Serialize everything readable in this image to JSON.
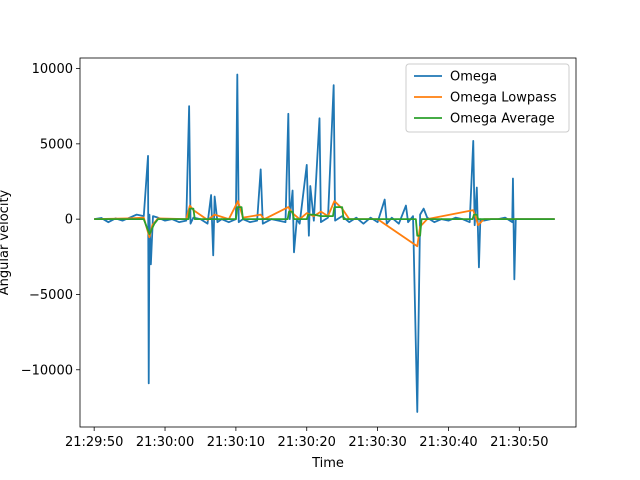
{
  "chart_data": {
    "type": "line",
    "xlabel": "Time",
    "ylabel": "Angular velocity",
    "x_tick_labels": [
      "21:29:50",
      "21:30:00",
      "21:30:10",
      "21:30:20",
      "21:30:30",
      "21:30:40",
      "21:30:50"
    ],
    "x_range": [
      "21:29:48",
      "21:30:58"
    ],
    "y_ticks": [
      -10000,
      -5000,
      0,
      5000,
      10000
    ],
    "y_tick_labels": [
      "−10000",
      "−5000",
      "0",
      "5000",
      "10000"
    ],
    "ylim": [
      -13800,
      10700
    ],
    "legend_position": "top-right",
    "grid": false,
    "series": [
      {
        "name": "Omega",
        "color": "#1f77b4",
        "points": [
          [
            "21:29:50",
            0
          ],
          [
            "21:29:51",
            80
          ],
          [
            "21:29:52",
            -200
          ],
          [
            "21:29:53",
            50
          ],
          [
            "21:29:54",
            -100
          ],
          [
            "21:29:55",
            100
          ],
          [
            "21:29:56",
            300
          ],
          [
            "21:29:57",
            200
          ],
          [
            "21:29:57.6",
            4200
          ],
          [
            "21:29:57.7",
            -10900
          ],
          [
            "21:29:57.8",
            300
          ],
          [
            "21:29:58",
            -3000
          ],
          [
            "21:29:58.3",
            200
          ],
          [
            "21:29:59",
            100
          ],
          [
            "21:30:00",
            -100
          ],
          [
            "21:30:01",
            0
          ],
          [
            "21:30:02",
            -200
          ],
          [
            "21:30:03",
            -100
          ],
          [
            "21:30:03.4",
            7500
          ],
          [
            "21:30:03.6",
            -300
          ],
          [
            "21:30:04",
            100
          ],
          [
            "21:30:05",
            0
          ],
          [
            "21:30:06",
            -300
          ],
          [
            "21:30:06.5",
            1600
          ],
          [
            "21:30:06.8",
            -2400
          ],
          [
            "21:30:07",
            1500
          ],
          [
            "21:30:07.4",
            -200
          ],
          [
            "21:30:08",
            0
          ],
          [
            "21:30:09",
            -200
          ],
          [
            "21:30:10",
            0
          ],
          [
            "21:30:10.2",
            9600
          ],
          [
            "21:30:10.4",
            -200
          ],
          [
            "21:30:11",
            0
          ],
          [
            "21:30:12",
            -200
          ],
          [
            "21:30:13",
            -100
          ],
          [
            "21:30:13.5",
            3300
          ],
          [
            "21:30:13.8",
            -300
          ],
          [
            "21:30:15",
            0
          ],
          [
            "21:30:16",
            -100
          ],
          [
            "21:30:17",
            -200
          ],
          [
            "21:30:17.4",
            7000
          ],
          [
            "21:30:17.6",
            0
          ],
          [
            "21:30:18",
            1900
          ],
          [
            "21:30:18.2",
            -2200
          ],
          [
            "21:30:18.6",
            0
          ],
          [
            "21:30:19",
            -300
          ],
          [
            "21:30:20",
            3600
          ],
          [
            "21:30:20.3",
            -1100
          ],
          [
            "21:30:20.5",
            2200
          ],
          [
            "21:30:21",
            -100
          ],
          [
            "21:30:21.8",
            6700
          ],
          [
            "21:30:22",
            -200
          ],
          [
            "21:30:23",
            100
          ],
          [
            "21:30:23.8",
            8900
          ],
          [
            "21:30:24",
            -100
          ],
          [
            "21:30:25",
            200
          ],
          [
            "21:30:26",
            -200
          ],
          [
            "21:30:27",
            100
          ],
          [
            "21:30:28",
            -300
          ],
          [
            "21:30:29",
            100
          ],
          [
            "21:30:30",
            -200
          ],
          [
            "21:30:31",
            1300
          ],
          [
            "21:30:31.3",
            -300
          ],
          [
            "21:30:32",
            100
          ],
          [
            "21:30:33",
            -300
          ],
          [
            "21:30:34",
            900
          ],
          [
            "21:30:34.3",
            -200
          ],
          [
            "21:30:35",
            200
          ],
          [
            "21:30:35.6",
            -12800
          ],
          [
            "21:30:36",
            300
          ],
          [
            "21:30:36.5",
            700
          ],
          [
            "21:30:37",
            100
          ],
          [
            "21:30:38",
            -200
          ],
          [
            "21:30:39",
            0
          ],
          [
            "21:30:40",
            -100
          ],
          [
            "21:30:41",
            100
          ],
          [
            "21:30:42",
            0
          ],
          [
            "21:30:43",
            -200
          ],
          [
            "21:30:43.5",
            5200
          ],
          [
            "21:30:43.7",
            -400
          ],
          [
            "21:30:44",
            2100
          ],
          [
            "21:30:44.3",
            -3200
          ],
          [
            "21:30:44.5",
            0
          ],
          [
            "21:30:45",
            -100
          ],
          [
            "21:30:46",
            0
          ],
          [
            "21:30:47",
            0
          ],
          [
            "21:30:48",
            100
          ],
          [
            "21:30:49",
            -200
          ],
          [
            "21:30:49.1",
            2700
          ],
          [
            "21:30:49.3",
            -4000
          ],
          [
            "21:30:49.5",
            0
          ],
          [
            "21:30:51",
            0
          ],
          [
            "21:30:53",
            0
          ],
          [
            "21:30:55",
            0
          ]
        ]
      },
      {
        "name": "Omega Lowpass",
        "color": "#ff7f0e",
        "points": [
          [
            "21:29:50",
            0
          ],
          [
            "21:29:55",
            50
          ],
          [
            "21:29:57",
            100
          ],
          [
            "21:29:57.8",
            -1200
          ],
          [
            "21:29:58.2",
            -400
          ],
          [
            "21:29:59",
            50
          ],
          [
            "21:30:03",
            0
          ],
          [
            "21:30:03.5",
            900
          ],
          [
            "21:30:04",
            600
          ],
          [
            "21:30:06",
            -50
          ],
          [
            "21:30:07",
            300
          ],
          [
            "21:30:09",
            0
          ],
          [
            "21:30:10.3",
            1200
          ],
          [
            "21:30:11",
            100
          ],
          [
            "21:30:13.5",
            300
          ],
          [
            "21:30:14",
            0
          ],
          [
            "21:30:17.4",
            800
          ],
          [
            "21:30:18",
            400
          ],
          [
            "21:30:19",
            0
          ],
          [
            "21:30:20",
            400
          ],
          [
            "21:30:21",
            200
          ],
          [
            "21:30:22",
            500
          ],
          [
            "21:30:23",
            200
          ],
          [
            "21:30:23.9",
            1200
          ],
          [
            "21:30:25",
            700
          ],
          [
            "21:30:26",
            0
          ],
          [
            "21:30:30",
            0
          ],
          [
            "21:30:35.6",
            -1800
          ],
          [
            "21:30:36",
            -500
          ],
          [
            "21:30:37",
            0
          ],
          [
            "21:30:43.5",
            600
          ],
          [
            "21:30:44.2",
            -400
          ],
          [
            "21:30:45",
            0
          ],
          [
            "21:30:49",
            0
          ],
          [
            "21:30:55",
            0
          ]
        ]
      },
      {
        "name": "Omega Average",
        "color": "#2ca02c",
        "points": [
          [
            "21:29:50",
            0
          ],
          [
            "21:29:57",
            0
          ],
          [
            "21:29:57.8",
            -1000
          ],
          [
            "21:29:58.5",
            -300
          ],
          [
            "21:29:59",
            0
          ],
          [
            "21:30:03.3",
            0
          ],
          [
            "21:30:03.5",
            700
          ],
          [
            "21:30:04",
            700
          ],
          [
            "21:30:04.2",
            0
          ],
          [
            "21:30:10",
            0
          ],
          [
            "21:30:10.2",
            800
          ],
          [
            "21:30:10.8",
            800
          ],
          [
            "21:30:11",
            0
          ],
          [
            "21:30:17.3",
            0
          ],
          [
            "21:30:17.5",
            500
          ],
          [
            "21:30:18",
            500
          ],
          [
            "21:30:18.2",
            0
          ],
          [
            "21:30:20",
            0
          ],
          [
            "21:30:20.2",
            300
          ],
          [
            "21:30:21",
            300
          ],
          [
            "21:30:22",
            200
          ],
          [
            "21:30:23.7",
            200
          ],
          [
            "21:30:23.9",
            800
          ],
          [
            "21:30:25",
            800
          ],
          [
            "21:30:25.2",
            0
          ],
          [
            "21:30:35.4",
            0
          ],
          [
            "21:30:35.6",
            -1100
          ],
          [
            "21:30:36",
            -1100
          ],
          [
            "21:30:36.2",
            0
          ],
          [
            "21:30:43.4",
            0
          ],
          [
            "21:30:43.6",
            300
          ],
          [
            "21:30:44",
            300
          ],
          [
            "21:30:44.2",
            0
          ],
          [
            "21:30:55",
            0
          ]
        ]
      }
    ]
  }
}
